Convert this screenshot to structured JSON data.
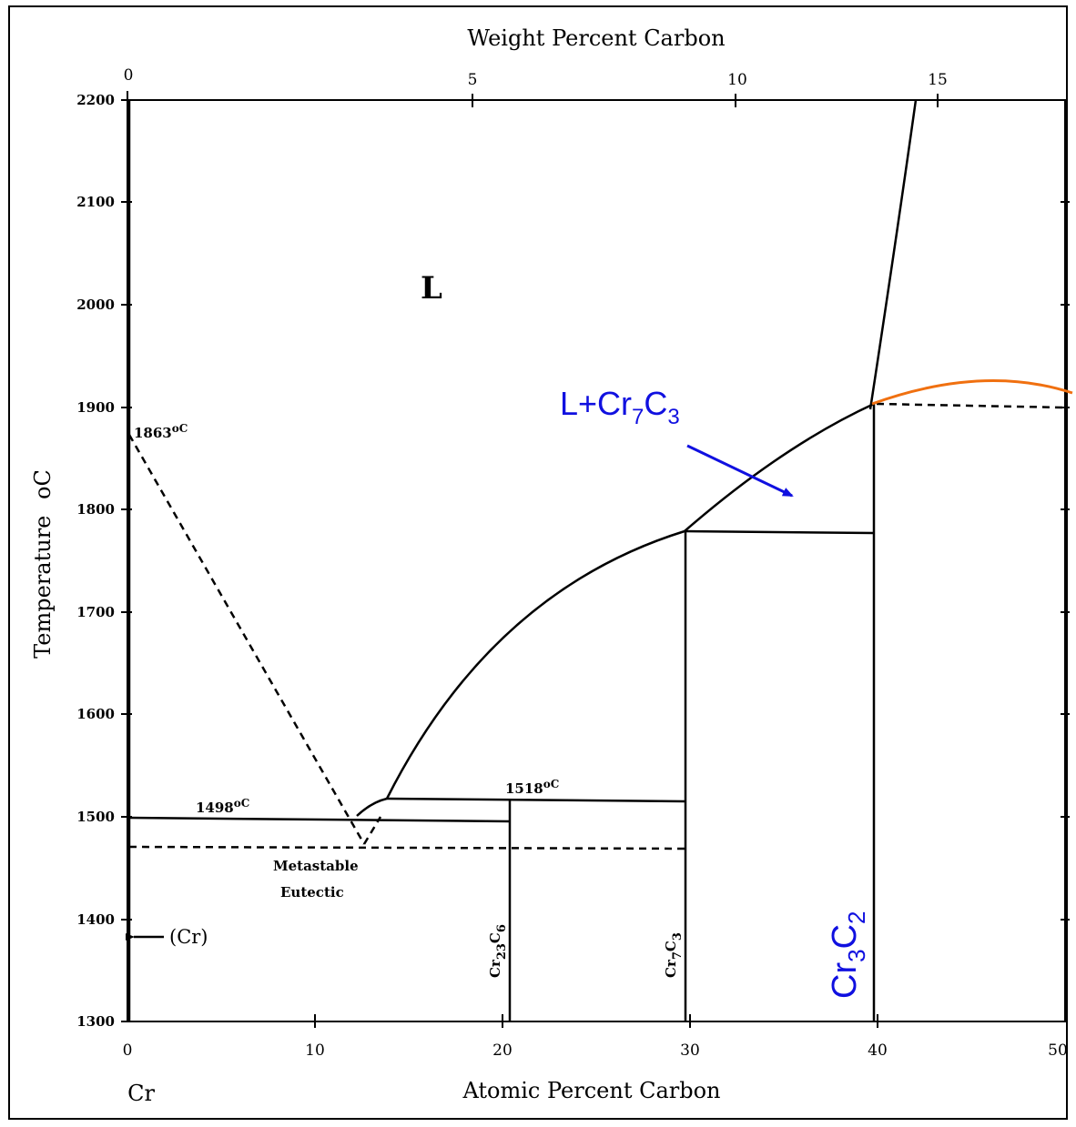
{
  "title_top": "Weight Percent Carbon",
  "xlabel": "Atomic Percent Carbon",
  "ylabel": "Temperature",
  "ylabel_unit": "oC",
  "element_label": "Cr",
  "y_ticks": [
    "1300",
    "1400",
    "1500",
    "1600",
    "1700",
    "1800",
    "1900",
    "2000",
    "2100",
    "2200"
  ],
  "x_ticks": [
    "0",
    "10",
    "20",
    "30",
    "40",
    "50"
  ],
  "top_ticks": [
    "0",
    "5",
    "10",
    "15"
  ],
  "annotations": {
    "melting_point": "1863",
    "melting_unit": "oC",
    "eutectic_temp": "1498",
    "eutectic_unit": "oC",
    "peritectic_temp": "1518",
    "peritectic_unit": "oC",
    "liquid": "L",
    "metastable_line1": "Metastable",
    "metastable_line2": "Eutectic",
    "cr_phase": "(Cr)",
    "cr23c6_main": "Cr",
    "cr23c6_sub1": "23",
    "cr23c6_c": "C",
    "cr23c6_sub2": "6",
    "cr7c3_main": "Cr",
    "cr7c3_sub1": "7",
    "cr7c3_c": "C",
    "cr7c3_sub2": "3",
    "cr3c2_main": "Cr",
    "cr3c2_sub1": "3",
    "cr3c2_c": "C",
    "cr3c2_sub2": "2",
    "lcr7c3_prefix": "L+Cr",
    "lcr7c3_sub1": "7",
    "lcr7c3_c": "C",
    "lcr7c3_sub2": "3"
  },
  "colors": {
    "annotation_blue": "#1010e0",
    "liquidus_extension": "#f07010"
  },
  "chart_data": {
    "type": "phase-diagram",
    "x_axis": {
      "label": "Atomic Percent Carbon",
      "range": [
        0,
        50
      ]
    },
    "x2_axis": {
      "label": "Weight Percent Carbon",
      "ticks": [
        0,
        5,
        10,
        15
      ]
    },
    "y_axis": {
      "label": "Temperature oC",
      "range": [
        1300,
        2200
      ]
    },
    "liquidus": [
      [
        0,
        1863
      ],
      [
        12.5,
        1498
      ],
      [
        14,
        1518
      ],
      [
        20,
        1640
      ],
      [
        30,
        1780
      ],
      [
        40,
        1905
      ],
      [
        42.5,
        2200
      ]
    ],
    "isotherms": [
      {
        "temp": 1498,
        "from": 0,
        "to": 20.7
      },
      {
        "temp": 1518,
        "from": 14,
        "to": 30
      },
      {
        "temp": 1780,
        "from": 30,
        "to": 40
      }
    ],
    "metastable_eutectic": {
      "temp": 1470,
      "composition": 13
    },
    "compounds": [
      {
        "name": "Cr23C6",
        "at_pct_c": 20.7
      },
      {
        "name": "Cr7C3",
        "at_pct_c": 30
      },
      {
        "name": "Cr3C2",
        "at_pct_c": 40
      }
    ]
  }
}
